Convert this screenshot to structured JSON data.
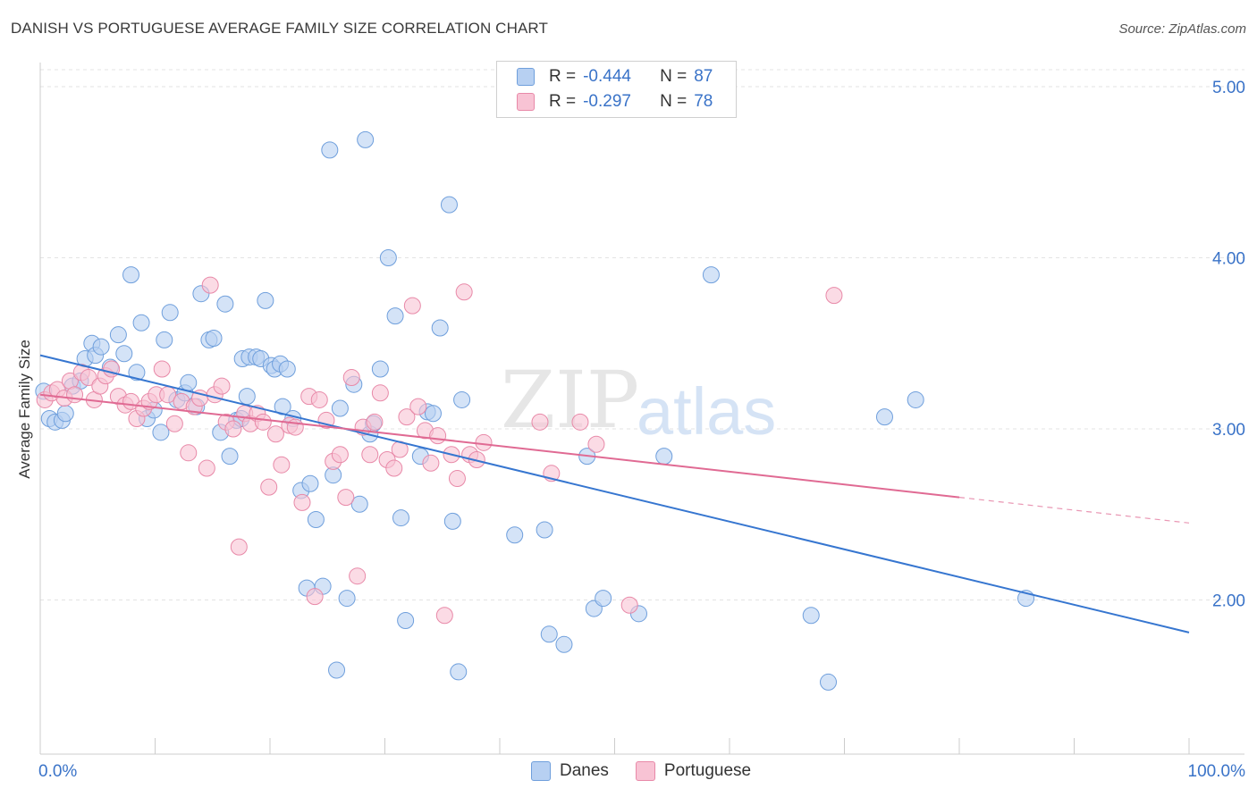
{
  "title": "DANISH VS PORTUGUESE AVERAGE FAMILY SIZE CORRELATION CHART",
  "source": "Source: ZipAtlas.com",
  "watermark": {
    "zip": "ZIP",
    "atlas": "atlas"
  },
  "legend": {
    "rows": [
      {
        "r_label": "R =",
        "r_value": "-0.444",
        "n_label": "N =",
        "n_value": "87"
      },
      {
        "r_label": "R =",
        "r_value": "-0.297",
        "n_label": "N =",
        "n_value": "78"
      }
    ]
  },
  "colors": {
    "danes_fill": "#b7d0f2",
    "danes_stroke": "#6f9fdc",
    "danes_line": "#3676d0",
    "portuguese_fill": "#f8c3d4",
    "portuguese_stroke": "#e889a8",
    "portuguese_line": "#e06a93",
    "tick_label": "#3a73c8",
    "grid": "#e3e3e3"
  },
  "chart_data": {
    "type": "scatter",
    "title": "DANISH VS PORTUGUESE AVERAGE FAMILY SIZE CORRELATION CHART",
    "xlabel": "",
    "ylabel": "Average Family Size",
    "xlim": [
      0,
      100
    ],
    "ylim": [
      1.1,
      5.2
    ],
    "x_tick_labels": [
      "0.0%",
      "100.0%"
    ],
    "y_ticks": [
      2.0,
      3.0,
      4.0,
      5.0
    ],
    "y_tick_labels": [
      "2.00",
      "3.00",
      "4.00",
      "5.00"
    ],
    "grid": true,
    "series": [
      {
        "name": "Danes",
        "r": -0.444,
        "n": 87,
        "trend": {
          "x": [
            0,
            100
          ],
          "y": [
            3.43,
            1.81
          ]
        },
        "points": [
          [
            0.3,
            3.22
          ],
          [
            0.8,
            3.06
          ],
          [
            1.3,
            3.04
          ],
          [
            1.9,
            3.05
          ],
          [
            2.2,
            3.09
          ],
          [
            2.8,
            3.25
          ],
          [
            3.5,
            3.28
          ],
          [
            3.9,
            3.41
          ],
          [
            4.5,
            3.5
          ],
          [
            4.8,
            3.43
          ],
          [
            5.3,
            3.48
          ],
          [
            6.1,
            3.36
          ],
          [
            6.8,
            3.55
          ],
          [
            7.3,
            3.44
          ],
          [
            7.9,
            3.9
          ],
          [
            8.4,
            3.33
          ],
          [
            8.8,
            3.62
          ],
          [
            9.3,
            3.06
          ],
          [
            9.9,
            3.11
          ],
          [
            10.5,
            2.98
          ],
          [
            10.8,
            3.52
          ],
          [
            11.3,
            3.68
          ],
          [
            11.9,
            3.17
          ],
          [
            12.6,
            3.21
          ],
          [
            12.9,
            3.27
          ],
          [
            13.6,
            3.13
          ],
          [
            14.0,
            3.79
          ],
          [
            14.7,
            3.52
          ],
          [
            15.1,
            3.53
          ],
          [
            15.7,
            2.98
          ],
          [
            16.1,
            3.73
          ],
          [
            16.5,
            2.84
          ],
          [
            17.1,
            3.05
          ],
          [
            17.5,
            3.06
          ],
          [
            17.6,
            3.41
          ],
          [
            18.0,
            3.19
          ],
          [
            18.2,
            3.42
          ],
          [
            18.8,
            3.42
          ],
          [
            19.2,
            3.41
          ],
          [
            19.6,
            3.75
          ],
          [
            20.1,
            3.37
          ],
          [
            20.4,
            3.35
          ],
          [
            20.9,
            3.38
          ],
          [
            21.1,
            3.13
          ],
          [
            21.5,
            3.35
          ],
          [
            22.0,
            3.06
          ],
          [
            22.7,
            2.64
          ],
          [
            23.2,
            2.07
          ],
          [
            23.5,
            2.68
          ],
          [
            24.0,
            2.47
          ],
          [
            24.6,
            2.08
          ],
          [
            25.2,
            4.63
          ],
          [
            25.5,
            2.73
          ],
          [
            25.8,
            1.59
          ],
          [
            26.1,
            3.12
          ],
          [
            26.7,
            2.01
          ],
          [
            27.3,
            3.26
          ],
          [
            27.8,
            2.56
          ],
          [
            28.3,
            4.69
          ],
          [
            28.7,
            2.97
          ],
          [
            29.0,
            3.03
          ],
          [
            29.6,
            3.35
          ],
          [
            30.3,
            4.0
          ],
          [
            30.9,
            3.66
          ],
          [
            31.4,
            2.48
          ],
          [
            31.8,
            1.88
          ],
          [
            33.1,
            2.84
          ],
          [
            33.7,
            3.1
          ],
          [
            34.2,
            3.09
          ],
          [
            34.8,
            3.59
          ],
          [
            35.6,
            4.31
          ],
          [
            35.9,
            2.46
          ],
          [
            36.4,
            1.58
          ],
          [
            36.7,
            3.17
          ],
          [
            41.3,
            2.38
          ],
          [
            43.9,
            2.41
          ],
          [
            44.3,
            1.8
          ],
          [
            45.6,
            1.74
          ],
          [
            47.6,
            2.84
          ],
          [
            48.2,
            1.95
          ],
          [
            49.0,
            2.01
          ],
          [
            52.1,
            1.92
          ],
          [
            54.3,
            2.84
          ],
          [
            58.4,
            3.9
          ],
          [
            67.1,
            1.91
          ],
          [
            68.6,
            1.52
          ],
          [
            73.5,
            3.07
          ],
          [
            76.2,
            3.17
          ],
          [
            85.8,
            2.01
          ]
        ]
      },
      {
        "name": "Portuguese",
        "r": -0.297,
        "n": 78,
        "trend": {
          "x": [
            0,
            80
          ],
          "y": [
            3.2,
            2.6
          ]
        },
        "trend_dashed": {
          "x": [
            80,
            100
          ],
          "y": [
            2.6,
            2.45
          ]
        },
        "points": [
          [
            0.4,
            3.17
          ],
          [
            1.0,
            3.21
          ],
          [
            1.5,
            3.23
          ],
          [
            2.1,
            3.18
          ],
          [
            2.6,
            3.28
          ],
          [
            3.0,
            3.2
          ],
          [
            3.6,
            3.33
          ],
          [
            4.2,
            3.3
          ],
          [
            4.7,
            3.17
          ],
          [
            5.2,
            3.25
          ],
          [
            5.7,
            3.31
          ],
          [
            6.2,
            3.35
          ],
          [
            6.8,
            3.19
          ],
          [
            7.4,
            3.14
          ],
          [
            7.9,
            3.16
          ],
          [
            8.4,
            3.06
          ],
          [
            9.0,
            3.12
          ],
          [
            9.5,
            3.16
          ],
          [
            10.1,
            3.2
          ],
          [
            10.6,
            3.35
          ],
          [
            11.1,
            3.2
          ],
          [
            11.7,
            3.03
          ],
          [
            12.3,
            3.16
          ],
          [
            12.9,
            2.86
          ],
          [
            13.4,
            3.13
          ],
          [
            13.9,
            3.18
          ],
          [
            14.5,
            2.77
          ],
          [
            14.8,
            3.84
          ],
          [
            15.2,
            3.2
          ],
          [
            15.8,
            3.25
          ],
          [
            16.2,
            3.04
          ],
          [
            16.8,
            3.0
          ],
          [
            17.3,
            2.31
          ],
          [
            17.8,
            3.09
          ],
          [
            18.3,
            3.03
          ],
          [
            18.9,
            3.09
          ],
          [
            19.4,
            3.04
          ],
          [
            19.9,
            2.66
          ],
          [
            20.5,
            2.97
          ],
          [
            21.0,
            2.79
          ],
          [
            21.7,
            3.02
          ],
          [
            22.2,
            3.01
          ],
          [
            22.8,
            2.57
          ],
          [
            23.4,
            3.19
          ],
          [
            23.9,
            2.02
          ],
          [
            24.3,
            3.17
          ],
          [
            24.9,
            3.05
          ],
          [
            25.5,
            2.81
          ],
          [
            26.1,
            2.85
          ],
          [
            26.6,
            2.6
          ],
          [
            27.1,
            3.3
          ],
          [
            27.6,
            2.14
          ],
          [
            28.1,
            3.01
          ],
          [
            28.7,
            2.85
          ],
          [
            29.1,
            3.04
          ],
          [
            29.6,
            3.21
          ],
          [
            30.2,
            2.82
          ],
          [
            30.8,
            2.77
          ],
          [
            31.3,
            2.88
          ],
          [
            31.9,
            3.07
          ],
          [
            32.4,
            3.72
          ],
          [
            32.9,
            3.13
          ],
          [
            33.5,
            2.99
          ],
          [
            34.0,
            2.8
          ],
          [
            34.6,
            2.96
          ],
          [
            35.2,
            1.91
          ],
          [
            35.8,
            2.85
          ],
          [
            36.3,
            2.71
          ],
          [
            36.9,
            3.8
          ],
          [
            37.4,
            2.85
          ],
          [
            38.0,
            2.82
          ],
          [
            38.6,
            2.92
          ],
          [
            43.5,
            3.04
          ],
          [
            44.5,
            2.74
          ],
          [
            47.0,
            3.04
          ],
          [
            48.4,
            2.91
          ],
          [
            51.3,
            1.97
          ],
          [
            69.1,
            3.78
          ]
        ]
      }
    ]
  }
}
